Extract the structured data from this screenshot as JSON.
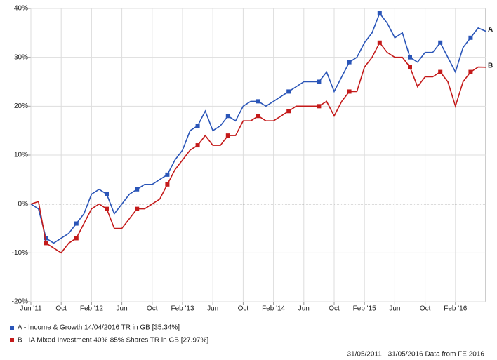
{
  "chart_data": {
    "type": "line",
    "x": [
      "2011-06",
      "2011-07",
      "2011-08",
      "2011-09",
      "2011-10",
      "2011-11",
      "2011-12",
      "2012-01",
      "2012-02",
      "2012-03",
      "2012-04",
      "2012-05",
      "2012-06",
      "2012-07",
      "2012-08",
      "2012-09",
      "2012-10",
      "2012-11",
      "2012-12",
      "2013-01",
      "2013-02",
      "2013-03",
      "2013-04",
      "2013-05",
      "2013-06",
      "2013-07",
      "2013-08",
      "2013-09",
      "2013-10",
      "2013-11",
      "2013-12",
      "2014-01",
      "2014-02",
      "2014-03",
      "2014-04",
      "2014-05",
      "2014-06",
      "2014-07",
      "2014-08",
      "2014-09",
      "2014-10",
      "2014-11",
      "2014-12",
      "2015-01",
      "2015-02",
      "2015-03",
      "2015-04",
      "2015-05",
      "2015-06",
      "2015-07",
      "2015-08",
      "2015-09",
      "2015-10",
      "2015-11",
      "2015-12",
      "2016-01",
      "2016-02",
      "2016-03",
      "2016-04",
      "2016-05",
      "2016-06"
    ],
    "series": [
      {
        "name": "A - Income & Growth 14/04/2016 TR in GB [35.34%]",
        "end_label": "A",
        "color": "#2a55b8",
        "values": [
          0,
          -1,
          -7,
          -8,
          -7,
          -6,
          -4,
          -2,
          2,
          3,
          2,
          -2,
          0,
          2,
          3,
          4,
          4,
          5,
          6,
          9,
          11,
          15,
          16,
          19,
          15,
          16,
          18,
          17,
          20,
          21,
          21,
          20,
          21,
          22,
          23,
          24,
          25,
          25,
          25,
          27,
          23,
          26,
          29,
          30,
          33,
          35,
          39,
          37,
          34,
          35,
          30,
          29,
          31,
          31,
          33,
          30,
          27,
          32,
          34,
          36,
          35.34
        ]
      },
      {
        "name": "B - IA Mixed Investment 40%-85% Shares TR in GB [27.97%]",
        "end_label": "B",
        "color": "#c41a1a",
        "values": [
          0,
          0.5,
          -8,
          -9,
          -10,
          -8,
          -7,
          -4,
          -1,
          0,
          -1,
          -5,
          -5,
          -3,
          -1,
          -1,
          0,
          1,
          4,
          7,
          9,
          11,
          12,
          14,
          12,
          12,
          14,
          14,
          17,
          17,
          18,
          17,
          17,
          18,
          19,
          20,
          20,
          20,
          20,
          21,
          18,
          21,
          23,
          23,
          28,
          30,
          33,
          31,
          30,
          30,
          28,
          24,
          26,
          26,
          27,
          25,
          20,
          25,
          27,
          28,
          27.97
        ]
      }
    ],
    "xlim": [
      "2011-06",
      "2016-06"
    ],
    "xticks": [
      {
        "value": "2011-06",
        "label": "Jun '11"
      },
      {
        "value": "2011-10",
        "label": "Oct"
      },
      {
        "value": "2012-02",
        "label": "Feb '12"
      },
      {
        "value": "2012-06",
        "label": "Jun"
      },
      {
        "value": "2012-10",
        "label": "Oct"
      },
      {
        "value": "2013-02",
        "label": "Feb '13"
      },
      {
        "value": "2013-06",
        "label": "Jun"
      },
      {
        "value": "2013-10",
        "label": "Oct"
      },
      {
        "value": "2014-02",
        "label": "Feb '14"
      },
      {
        "value": "2014-06",
        "label": "Jun"
      },
      {
        "value": "2014-10",
        "label": "Oct"
      },
      {
        "value": "2015-02",
        "label": "Feb '15"
      },
      {
        "value": "2015-06",
        "label": "Jun"
      },
      {
        "value": "2015-10",
        "label": "Oct"
      },
      {
        "value": "2016-02",
        "label": "Feb '16"
      }
    ],
    "ylim": [
      -20,
      40
    ],
    "yticks": [
      {
        "value": -20,
        "label": "-20%"
      },
      {
        "value": -10,
        "label": "-10%"
      },
      {
        "value": 0,
        "label": "0%"
      },
      {
        "value": 10,
        "label": "10%"
      },
      {
        "value": 20,
        "label": "20%"
      },
      {
        "value": 30,
        "label": "30%"
      },
      {
        "value": 40,
        "label": "40%"
      }
    ],
    "grid": true,
    "zero_line": true,
    "markers": true,
    "source": "31/05/2011 - 31/05/2016 Data from FE 2016"
  }
}
